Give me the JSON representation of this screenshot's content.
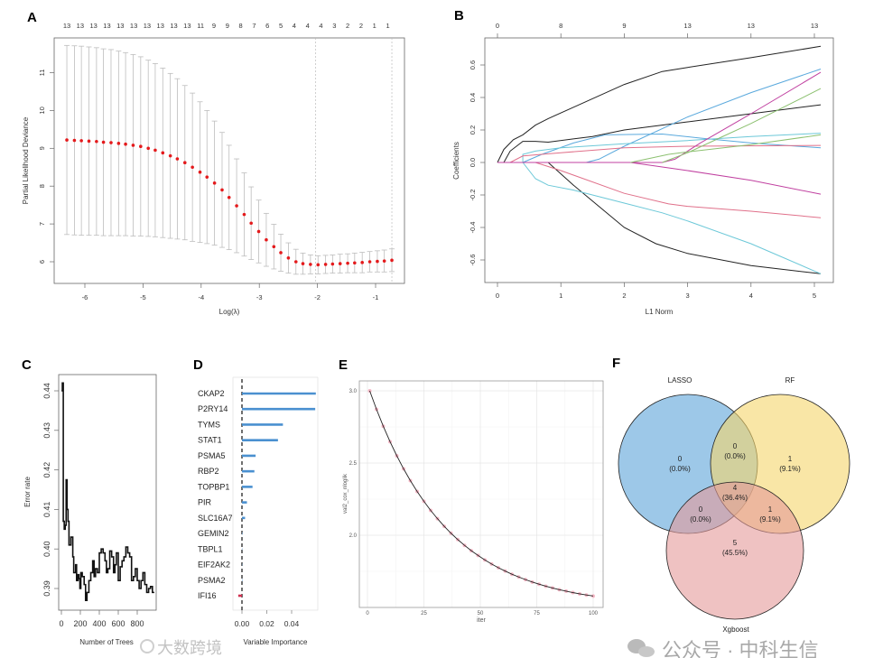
{
  "panel_labels": {
    "a": "A",
    "b": "B",
    "c": "C",
    "d": "D",
    "e": "E",
    "f": "F"
  },
  "watermarks": {
    "left": "大数跨境",
    "right": "公众号 · 中科生信"
  },
  "chart_data": [
    {
      "id": "A",
      "type": "scatter",
      "title": "",
      "xlabel": "Log(λ)",
      "ylabel": "Partial Likelihood Deviance",
      "xticks": [
        -6,
        -5,
        -4,
        -3,
        -2,
        -1
      ],
      "yticks": [
        6,
        7,
        8,
        9,
        10,
        11
      ],
      "top_labels": [
        "13",
        "13",
        "13",
        "13",
        "13",
        "13",
        "13",
        "13",
        "13",
        "13",
        "11",
        "9",
        "9",
        "8",
        "7",
        "6",
        "5",
        "4",
        "4",
        "4",
        "3",
        "2",
        "2",
        "1",
        "1"
      ],
      "vlines": [
        -2.03,
        -0.72
      ],
      "x": [
        -6.31,
        -6.18,
        -6.06,
        -5.93,
        -5.8,
        -5.68,
        -5.55,
        -5.42,
        -5.3,
        -5.17,
        -5.04,
        -4.91,
        -4.79,
        -4.66,
        -4.53,
        -4.41,
        -4.28,
        -4.15,
        -4.02,
        -3.9,
        -3.77,
        -3.64,
        -3.52,
        -3.39,
        -3.26,
        -3.14,
        -3.01,
        -2.88,
        -2.75,
        -2.63,
        -2.5,
        -2.37,
        -2.25,
        -2.12,
        -1.99,
        -1.86,
        -1.74,
        -1.61,
        -1.48,
        -1.36,
        -1.23,
        -1.1,
        -0.97,
        -0.85,
        -0.72
      ],
      "mean": [
        9.22,
        9.21,
        9.2,
        9.19,
        9.18,
        9.16,
        9.15,
        9.13,
        9.11,
        9.08,
        9.05,
        9.0,
        8.95,
        8.88,
        8.8,
        8.72,
        8.62,
        8.5,
        8.37,
        8.24,
        8.08,
        7.9,
        7.7,
        7.48,
        7.25,
        7.02,
        6.8,
        6.58,
        6.4,
        6.24,
        6.1,
        6.0,
        5.95,
        5.93,
        5.92,
        5.93,
        5.94,
        5.95,
        5.96,
        5.97,
        5.98,
        6.0,
        6.01,
        6.02,
        6.04
      ],
      "se": [
        2.5,
        2.5,
        2.5,
        2.49,
        2.48,
        2.47,
        2.46,
        2.44,
        2.42,
        2.4,
        2.37,
        2.33,
        2.29,
        2.24,
        2.18,
        2.12,
        2.04,
        1.96,
        1.86,
        1.76,
        1.64,
        1.52,
        1.38,
        1.24,
        1.1,
        0.96,
        0.83,
        0.7,
        0.59,
        0.49,
        0.4,
        0.33,
        0.28,
        0.25,
        0.24,
        0.24,
        0.24,
        0.25,
        0.25,
        0.26,
        0.27,
        0.27,
        0.28,
        0.29,
        0.3
      ],
      "point_color": "#e41a1c",
      "errorbar_color": "#bdbdbd"
    },
    {
      "id": "B",
      "type": "line",
      "xlabel": "L1 Norm",
      "ylabel": "Coefficients",
      "xticks": [
        0,
        1,
        2,
        3,
        4,
        5
      ],
      "yticks": [
        -0.6,
        -0.4,
        -0.2,
        0.0,
        0.2,
        0.4,
        0.6
      ],
      "ytick_labels": [
        "-0.6",
        "-0.4",
        "-0.2",
        "0.0",
        "0.2",
        "0.4",
        "0.6"
      ],
      "top_labels": [
        "0",
        "8",
        "9",
        "13",
        "13",
        "13"
      ],
      "series": [
        {
          "color": "#222222",
          "points": [
            [
              0,
              0
            ],
            [
              0.1,
              0.08
            ],
            [
              0.25,
              0.14
            ],
            [
              0.4,
              0.17
            ],
            [
              0.6,
              0.23
            ],
            [
              0.8,
              0.27
            ],
            [
              1.2,
              0.34
            ],
            [
              2,
              0.48
            ],
            [
              2.6,
              0.56
            ],
            [
              3,
              0.585
            ],
            [
              4,
              0.645
            ],
            [
              5.1,
              0.715
            ]
          ]
        },
        {
          "color": "#222222",
          "points": [
            [
              0.1,
              0
            ],
            [
              0.2,
              0.07
            ],
            [
              0.4,
              0.13
            ],
            [
              0.6,
              0.13
            ],
            [
              0.8,
              0.125
            ],
            [
              1.5,
              0.16
            ],
            [
              2,
              0.2
            ],
            [
              3,
              0.25
            ],
            [
              4,
              0.3
            ],
            [
              5.1,
              0.355
            ]
          ]
        },
        {
          "color": "#222222",
          "points": [
            [
              0.8,
              0
            ],
            [
              1.2,
              -0.14
            ],
            [
              1.6,
              -0.27
            ],
            [
              2,
              -0.4
            ],
            [
              2.5,
              -0.5
            ],
            [
              3,
              -0.56
            ],
            [
              4,
              -0.635
            ],
            [
              5.1,
              -0.685
            ]
          ]
        },
        {
          "color": "#5aa9dd",
          "points": [
            [
              0.4,
              0
            ],
            [
              0.7,
              0.05
            ],
            [
              1.2,
              0.12
            ],
            [
              1.7,
              0.17
            ],
            [
              2.6,
              0.175
            ],
            [
              3.2,
              0.15
            ],
            [
              4,
              0.12
            ],
            [
              5.1,
              0.09
            ]
          ]
        },
        {
          "color": "#5aa9dd",
          "points": [
            [
              1.4,
              0
            ],
            [
              1.6,
              0.02
            ],
            [
              2,
              0.1
            ],
            [
              3,
              0.28
            ],
            [
              4,
              0.43
            ],
            [
              5.1,
              0.575
            ]
          ]
        },
        {
          "color": "#6cc8d8",
          "points": [
            [
              0.4,
              0
            ],
            [
              0.4,
              0.05
            ],
            [
              0.6,
              0.07
            ],
            [
              1,
              0.09
            ],
            [
              2,
              0.115
            ],
            [
              3,
              0.135
            ],
            [
              4,
              0.16
            ],
            [
              5.1,
              0.18
            ]
          ]
        },
        {
          "color": "#6cc8d8",
          "points": [
            [
              0.4,
              0
            ],
            [
              0.6,
              -0.1
            ],
            [
              0.8,
              -0.14
            ],
            [
              1.2,
              -0.17
            ],
            [
              2,
              -0.25
            ],
            [
              2.6,
              -0.31
            ],
            [
              3,
              -0.36
            ],
            [
              4,
              -0.5
            ],
            [
              5.1,
              -0.685
            ]
          ]
        },
        {
          "color": "#e0708a",
          "points": [
            [
              0.2,
              0
            ],
            [
              0.4,
              0.04
            ],
            [
              1,
              0.06
            ],
            [
              2,
              0.09
            ],
            [
              3,
              0.1
            ],
            [
              5.1,
              0.105
            ]
          ]
        },
        {
          "color": "#e0708a",
          "points": [
            [
              0.6,
              0
            ],
            [
              1,
              -0.05
            ],
            [
              2,
              -0.19
            ],
            [
              2.7,
              -0.255
            ],
            [
              3,
              -0.27
            ],
            [
              4,
              -0.3
            ],
            [
              5.1,
              -0.34
            ]
          ]
        },
        {
          "color": "#c040a0",
          "points": [
            [
              0,
              0
            ],
            [
              2.6,
              0
            ],
            [
              2.8,
              0.02
            ],
            [
              3.2,
              0.12
            ],
            [
              4,
              0.3
            ],
            [
              5.1,
              0.555
            ]
          ]
        },
        {
          "color": "#c040a0",
          "points": [
            [
              2.1,
              0
            ],
            [
              3,
              -0.05
            ],
            [
              4,
              -0.11
            ],
            [
              5.1,
              -0.195
            ]
          ]
        },
        {
          "color": "#8cc070",
          "points": [
            [
              2.6,
              0
            ],
            [
              3,
              0.06
            ],
            [
              3.5,
              0.15
            ],
            [
              4,
              0.24
            ],
            [
              5.1,
              0.455
            ]
          ]
        },
        {
          "color": "#8cc070",
          "points": [
            [
              2.1,
              0
            ],
            [
              2.7,
              0.05
            ],
            [
              3,
              0.065
            ],
            [
              4,
              0.11
            ],
            [
              5.1,
              0.17
            ]
          ]
        }
      ]
    },
    {
      "id": "C",
      "type": "line",
      "xlabel": "Number of Trees",
      "ylabel": "Error rate",
      "xticks": [
        0,
        200,
        400,
        600,
        800
      ],
      "yticks": [
        0.39,
        0.4,
        0.41,
        0.42,
        0.43,
        0.44
      ],
      "ytick_labels": [
        "0.39",
        "0.40",
        "0.41",
        "0.42",
        "0.43",
        "0.44"
      ],
      "points": [
        [
          1,
          0.44
        ],
        [
          10,
          0.442
        ],
        [
          20,
          0.407
        ],
        [
          30,
          0.405
        ],
        [
          40,
          0.406
        ],
        [
          50,
          0.4175
        ],
        [
          60,
          0.41
        ],
        [
          70,
          0.407
        ],
        [
          80,
          0.401
        ],
        [
          100,
          0.403
        ],
        [
          120,
          0.398
        ],
        [
          130,
          0.394
        ],
        [
          150,
          0.396
        ],
        [
          160,
          0.392
        ],
        [
          175,
          0.3935
        ],
        [
          185,
          0.3925
        ],
        [
          195,
          0.39
        ],
        [
          205,
          0.394
        ],
        [
          220,
          0.393
        ],
        [
          240,
          0.391
        ],
        [
          255,
          0.387
        ],
        [
          270,
          0.389
        ],
        [
          290,
          0.392
        ],
        [
          310,
          0.394
        ],
        [
          330,
          0.397
        ],
        [
          345,
          0.393
        ],
        [
          360,
          0.395
        ],
        [
          380,
          0.394
        ],
        [
          400,
          0.399
        ],
        [
          420,
          0.4
        ],
        [
          440,
          0.399
        ],
        [
          460,
          0.397
        ],
        [
          475,
          0.394
        ],
        [
          490,
          0.395
        ],
        [
          510,
          0.3995
        ],
        [
          530,
          0.398
        ],
        [
          550,
          0.394
        ],
        [
          565,
          0.396
        ],
        [
          580,
          0.399
        ],
        [
          600,
          0.392
        ],
        [
          620,
          0.3955
        ],
        [
          640,
          0.397
        ],
        [
          660,
          0.398
        ],
        [
          680,
          0.4005
        ],
        [
          700,
          0.399
        ],
        [
          720,
          0.398
        ],
        [
          740,
          0.392
        ],
        [
          760,
          0.393
        ],
        [
          780,
          0.395
        ],
        [
          800,
          0.392
        ],
        [
          820,
          0.39
        ],
        [
          840,
          0.392
        ],
        [
          860,
          0.394
        ],
        [
          880,
          0.391
        ],
        [
          900,
          0.389
        ],
        [
          920,
          0.39
        ],
        [
          940,
          0.3905
        ],
        [
          960,
          0.389
        ],
        [
          980,
          0.389
        ]
      ]
    },
    {
      "id": "D",
      "type": "bar",
      "xlabel": "Variable Importance",
      "ylabel": "",
      "xticks": [
        0.0,
        0.02,
        0.04
      ],
      "xtick_labels": [
        "0.00",
        "0.02",
        "0.04"
      ],
      "categories": [
        "CKAP2",
        "P2RY14",
        "TYMS",
        "STAT1",
        "PSMA5",
        "RBP2",
        "TOPBP1",
        "PIR",
        "SLC16A7",
        "GEMIN2",
        "TBPL1",
        "EIF2AK2",
        "PSMA2",
        "IFI16"
      ],
      "values": [
        0.0595,
        0.059,
        0.033,
        0.029,
        0.011,
        0.01,
        0.0085,
        0.004,
        0.0025,
        0.0003,
        0.0002,
        0.0002,
        0.0003,
        -0.003
      ],
      "positive_color": "#4a90d0",
      "negative_color": "#d03050"
    },
    {
      "id": "E",
      "type": "scatter",
      "xlabel": "iter",
      "ylabel": "val2_cox_nloglik",
      "xticks": [
        0,
        25,
        50,
        75,
        100
      ],
      "yticks": [
        2.0,
        2.5,
        3.0
      ],
      "ytick_labels": [
        "2.0",
        "2.5",
        "3.0"
      ],
      "ylim": [
        1.5,
        3.07
      ],
      "x": [
        1,
        4,
        7,
        10,
        13,
        16,
        19,
        22,
        25,
        28,
        31,
        34,
        37,
        40,
        43,
        46,
        49,
        52,
        55,
        58,
        61,
        64,
        67,
        70,
        73,
        76,
        79,
        82,
        85,
        88,
        91,
        94,
        97,
        100
      ],
      "values": [
        3.0,
        2.872,
        2.755,
        2.648,
        2.55,
        2.46,
        2.378,
        2.303,
        2.235,
        2.172,
        2.115,
        2.062,
        2.014,
        1.97,
        1.93,
        1.893,
        1.86,
        1.829,
        1.801,
        1.775,
        1.752,
        1.73,
        1.711,
        1.693,
        1.676,
        1.661,
        1.647,
        1.635,
        1.623,
        1.613,
        1.603,
        1.594,
        1.586,
        1.579
      ],
      "point_color": "#f4a6b8",
      "line_color": "#222222"
    },
    {
      "id": "F",
      "type": "venn",
      "sets": [
        {
          "name": "LASSO",
          "color": "#5ba3d9"
        },
        {
          "name": "RF",
          "color": "#f5d66a"
        },
        {
          "name": "Xgboost",
          "color": "#e59a9a"
        }
      ],
      "regions": [
        {
          "sets": "LASSO only",
          "count": "0",
          "pct": "(0.0%)"
        },
        {
          "sets": "LASSO∩RF",
          "count": "0",
          "pct": "(0.0%)"
        },
        {
          "sets": "RF only",
          "count": "1",
          "pct": "(9.1%)"
        },
        {
          "sets": "LASSO∩RF∩Xgboost",
          "count": "4",
          "pct": "(36.4%)"
        },
        {
          "sets": "LASSO∩Xgboost",
          "count": "0",
          "pct": "(0.0%)"
        },
        {
          "sets": "RF∩Xgboost",
          "count": "1",
          "pct": "(9.1%)"
        },
        {
          "sets": "Xgboost only",
          "count": "5",
          "pct": "(45.5%)"
        }
      ]
    }
  ]
}
